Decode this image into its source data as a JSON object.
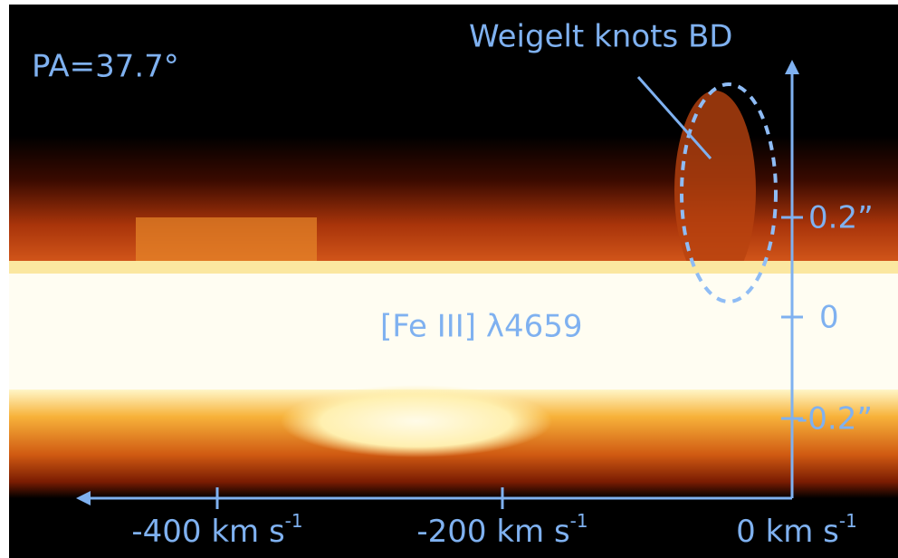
{
  "annotations": {
    "position_angle": "PA=37.7°",
    "feature": "Weigelt knots BD",
    "line": "[Fe III] λ4659"
  },
  "y_axis": {
    "ticks": [
      "0.2”",
      "0",
      "-0.2”"
    ]
  },
  "x_axis": {
    "ticks": [
      {
        "label": "-400 km s",
        "superscript": "-1"
      },
      {
        "label": "-200 km s",
        "superscript": "-1"
      },
      {
        "label": "0 km s",
        "superscript": "-1"
      }
    ]
  }
}
